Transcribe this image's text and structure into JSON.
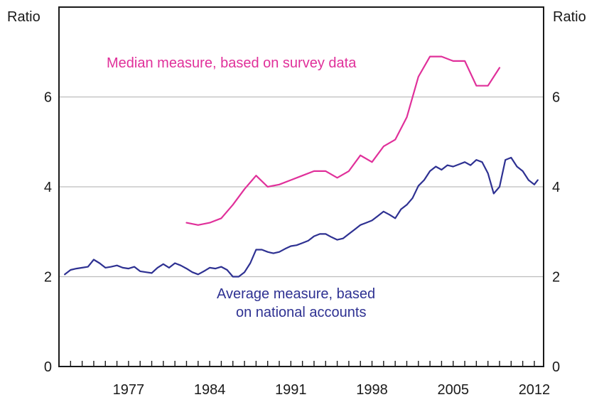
{
  "chart_data": {
    "type": "line",
    "title": "",
    "ylabel_left": "Ratio",
    "ylabel_right": "Ratio",
    "xlim": [
      1971,
      2012.8
    ],
    "ylim": [
      0,
      8
    ],
    "x_ticks": [
      1977,
      1984,
      1991,
      1998,
      2005,
      2012
    ],
    "y_ticks": [
      0,
      2,
      4,
      6
    ],
    "grid": "horizontal",
    "colors": {
      "median": "#e0309a",
      "average": "#2e3192",
      "grid": "#bdbdbd",
      "axis": "#1a1a1a"
    },
    "series": [
      {
        "key": "median",
        "name": "Median measure, based on survey data",
        "x": [
          1982,
          1983,
          1984,
          1985,
          1986,
          1987,
          1988,
          1989,
          1990,
          1991,
          1992,
          1993,
          1994,
          1995,
          1996,
          1997,
          1998,
          1999,
          2000,
          2001,
          2002,
          2003,
          2004,
          2005,
          2006,
          2007,
          2008,
          2009
        ],
        "values": [
          3.2,
          3.15,
          3.2,
          3.3,
          3.6,
          3.95,
          4.25,
          4.0,
          4.05,
          4.15,
          4.25,
          4.35,
          4.35,
          4.2,
          4.35,
          4.7,
          4.55,
          4.9,
          5.05,
          5.55,
          6.45,
          6.9,
          6.9,
          6.8,
          6.8,
          6.25,
          6.25,
          6.65
        ]
      },
      {
        "key": "average",
        "name": "Average measure, based on national accounts",
        "x": [
          1971.5,
          1972,
          1972.5,
          1973,
          1973.5,
          1974,
          1974.5,
          1975,
          1975.5,
          1976,
          1976.5,
          1977,
          1977.5,
          1978,
          1978.5,
          1979,
          1979.5,
          1980,
          1980.5,
          1981,
          1981.5,
          1982,
          1982.5,
          1983,
          1983.5,
          1984,
          1984.5,
          1985,
          1985.5,
          1986,
          1986.5,
          1987,
          1987.5,
          1988,
          1988.5,
          1989,
          1989.5,
          1990,
          1990.5,
          1991,
          1991.5,
          1992,
          1992.5,
          1993,
          1993.5,
          1994,
          1994.5,
          1995,
          1995.5,
          1996,
          1996.5,
          1997,
          1997.5,
          1998,
          1998.5,
          1999,
          1999.5,
          2000,
          2000.5,
          2001,
          2001.5,
          2002,
          2002.5,
          2003,
          2003.5,
          2004,
          2004.5,
          2005,
          2005.5,
          2006,
          2006.5,
          2007,
          2007.5,
          2008,
          2008.5,
          2009,
          2009.5,
          2010,
          2010.5,
          2011,
          2011.5,
          2012,
          2012.3
        ],
        "values": [
          2.05,
          2.15,
          2.18,
          2.2,
          2.22,
          2.38,
          2.3,
          2.2,
          2.22,
          2.25,
          2.2,
          2.18,
          2.22,
          2.12,
          2.1,
          2.08,
          2.2,
          2.28,
          2.2,
          2.3,
          2.25,
          2.18,
          2.1,
          2.05,
          2.12,
          2.2,
          2.18,
          2.22,
          2.15,
          2.0,
          2.0,
          2.1,
          2.3,
          2.6,
          2.6,
          2.55,
          2.52,
          2.55,
          2.62,
          2.68,
          2.7,
          2.75,
          2.8,
          2.9,
          2.95,
          2.95,
          2.88,
          2.82,
          2.85,
          2.95,
          3.05,
          3.15,
          3.2,
          3.25,
          3.35,
          3.45,
          3.38,
          3.3,
          3.5,
          3.6,
          3.75,
          4.02,
          4.15,
          4.35,
          4.45,
          4.38,
          4.48,
          4.45,
          4.5,
          4.55,
          4.48,
          4.6,
          4.55,
          4.3,
          3.85,
          4.0,
          4.6,
          4.65,
          4.45,
          4.35,
          4.15,
          4.05,
          4.15
        ]
      }
    ],
    "annotations": [
      {
        "series": "median",
        "lines": [
          "Median measure, based on survey data"
        ]
      },
      {
        "series": "average",
        "lines": [
          "Average measure, based",
          "on national accounts"
        ]
      }
    ]
  }
}
